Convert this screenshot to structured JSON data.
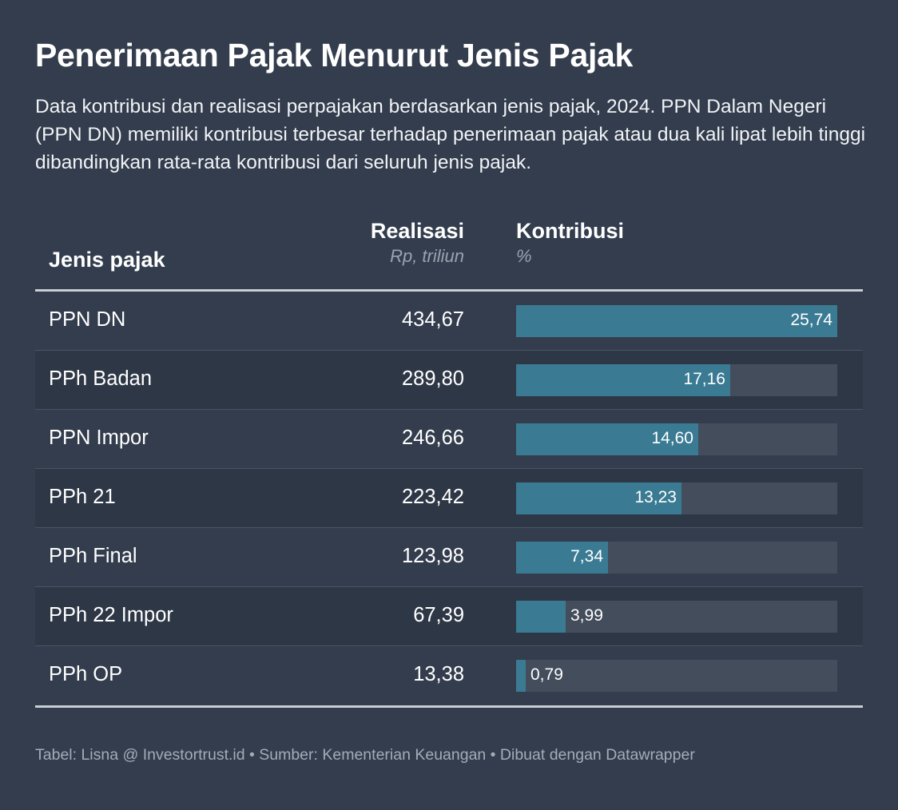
{
  "title": "Penerimaan Pajak Menurut Jenis Pajak",
  "subtitle": "Data kontribusi dan realisasi perpajakan berdasarkan jenis pajak, 2024. PPN Dalam Negeri (PPN DN) memiliki kontribusi terbesar terhadap penerimaan pajak atau dua kali lipat lebih tinggi dibandingkan rata-rata kontribusi dari seluruh jenis pajak.",
  "header": {
    "jenis": "Jenis pajak",
    "realisasi": "Realisasi",
    "realisasi_unit": "Rp, triliun",
    "kontribusi": "Kontribusi",
    "kontribusi_unit": "%"
  },
  "colors": {
    "background": "#333d4d",
    "bar": "#3a7b93",
    "track": "#434d5c"
  },
  "chart_data": {
    "type": "table",
    "title": "Penerimaan Pajak Menurut Jenis Pajak",
    "columns": [
      "Jenis pajak",
      "Realisasi",
      "Kontribusi"
    ],
    "bar_max": 25.74,
    "rows": [
      {
        "jenis": "PPN DN",
        "realisasi": "434,67",
        "kontribusi": 25.74,
        "kontribusi_label": "25,74"
      },
      {
        "jenis": "PPh Badan",
        "realisasi": "289,80",
        "kontribusi": 17.16,
        "kontribusi_label": "17,16"
      },
      {
        "jenis": "PPN Impor",
        "realisasi": "246,66",
        "kontribusi": 14.6,
        "kontribusi_label": "14,60"
      },
      {
        "jenis": "PPh 21",
        "realisasi": "223,42",
        "kontribusi": 13.23,
        "kontribusi_label": "13,23"
      },
      {
        "jenis": "PPh Final",
        "realisasi": "123,98",
        "kontribusi": 7.34,
        "kontribusi_label": "7,34"
      },
      {
        "jenis": "PPh 22 Impor",
        "realisasi": "67,39",
        "kontribusi": 3.99,
        "kontribusi_label": "3,99"
      },
      {
        "jenis": "PPh OP",
        "realisasi": "13,38",
        "kontribusi": 0.79,
        "kontribusi_label": "0,79"
      }
    ]
  },
  "footer": "Tabel: Lisna @ Investortrust.id • Sumber: Kementerian Keuangan • Dibuat dengan Datawrapper"
}
